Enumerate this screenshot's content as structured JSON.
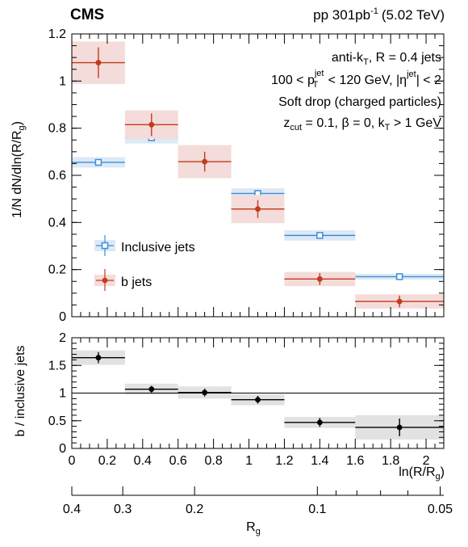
{
  "header": {
    "experiment": "CMS",
    "lumi_prefix": "pp 301",
    "lumi_unit": "pb",
    "lumi_exp": "-1",
    "energy": "(5.02 TeV)"
  },
  "annotations": {
    "line1": {
      "a": "anti-k",
      "b": "T",
      "c": ", R = 0.4 jets"
    },
    "line2": {
      "a": "100 < p",
      "sup": "jet",
      "sub": "T",
      "b": " < 120 GeV, |η",
      "sup2": "jet",
      "c": "| < 2"
    },
    "line3": "Soft drop (charged particles)",
    "line4": {
      "a": "z",
      "sub": "cut",
      "b": " = 0.1, β = 0, k",
      "sub2": "T",
      "c": " > 1 GeV"
    }
  },
  "axes": {
    "top_ylabel": "1/N dN/dln(R/R",
    "top_ylabel_sub": "g",
    "top_ylabel_end": ")",
    "bottom_ylabel": "b / inclusive jets",
    "xlabel": "ln(R/R",
    "xlabel_sub": "g",
    "xlabel_end": ")",
    "rg_label": "R",
    "rg_label_sub": "g"
  },
  "legend": {
    "inclusive": "Inclusive jets",
    "b": "b jets"
  },
  "colors": {
    "inclusive": "#3b8ed8",
    "inclusive_band": "#dde9f6",
    "b": "#c33a1c",
    "b_band": "#f3dcd9",
    "ratio": "#000000",
    "ratio_band": "#e2e2e2"
  },
  "chart_data": [
    {
      "type": "scatter",
      "panel": "distribution",
      "xlim": [
        0,
        2.1
      ],
      "ylim": [
        0,
        1.2
      ],
      "x_ticks": [
        "0",
        "0.2",
        "0.4",
        "0.6",
        "0.8",
        "1",
        "1.2",
        "1.4",
        "1.6",
        "1.8",
        "2"
      ],
      "y_ticks": [
        "0",
        "0.2",
        "0.4",
        "0.6",
        "0.8",
        "1",
        "1.2"
      ],
      "bins": [
        [
          0,
          0.3
        ],
        [
          0.3,
          0.6
        ],
        [
          0.6,
          0.9
        ],
        [
          0.9,
          1.2
        ],
        [
          1.2,
          1.6
        ],
        [
          1.6,
          2.1
        ]
      ],
      "series": [
        {
          "name": "Inclusive jets",
          "x": [
            0.15,
            0.45,
            0.75,
            1.05,
            1.4,
            1.85
          ],
          "y": [
            0.655,
            0.76,
            0.648,
            0.523,
            0.345,
            0.17
          ],
          "stat_err": [
            0.008,
            0.008,
            0.008,
            0.008,
            0.008,
            0.006
          ],
          "syst_err": [
            0.022,
            0.025,
            0.022,
            0.022,
            0.022,
            0.012
          ]
        },
        {
          "name": "b jets",
          "x": [
            0.15,
            0.45,
            0.75,
            1.05,
            1.4,
            1.85
          ],
          "y": [
            1.078,
            0.815,
            0.658,
            0.457,
            0.16,
            0.065
          ],
          "stat_err": [
            0.065,
            0.048,
            0.042,
            0.038,
            0.025,
            0.025
          ],
          "syst_err": [
            0.09,
            0.06,
            0.07,
            0.06,
            0.03,
            0.03
          ]
        }
      ]
    },
    {
      "type": "scatter",
      "panel": "ratio",
      "ylabel": "b / inclusive jets",
      "xlim": [
        0,
        2.1
      ],
      "ylim": [
        0,
        2
      ],
      "y_ticks": [
        "0",
        "0.5",
        "1",
        "1.5",
        "2"
      ],
      "reference_line": 1,
      "series": [
        {
          "name": "b / inclusive jets",
          "x": [
            0.15,
            0.45,
            0.75,
            1.05,
            1.4,
            1.85
          ],
          "y": [
            1.64,
            1.07,
            1.01,
            0.88,
            0.47,
            0.38
          ],
          "stat_err": [
            0.1,
            0.06,
            0.07,
            0.07,
            0.08,
            0.16
          ],
          "syst_err": [
            0.13,
            0.1,
            0.11,
            0.1,
            0.1,
            0.22
          ]
        }
      ]
    },
    {
      "type": "axis",
      "panel": "rg_axis",
      "ticks": [
        {
          "label": "0.4",
          "value": 0.4
        },
        {
          "label": "0.3",
          "value": 0.3
        },
        {
          "label": "0.2",
          "value": 0.2
        },
        {
          "label": "0.1",
          "value": 0.1
        },
        {
          "label": "0.05",
          "value": 0.05
        }
      ],
      "minor": [
        0.09,
        0.08,
        0.07,
        0.06
      ]
    }
  ]
}
